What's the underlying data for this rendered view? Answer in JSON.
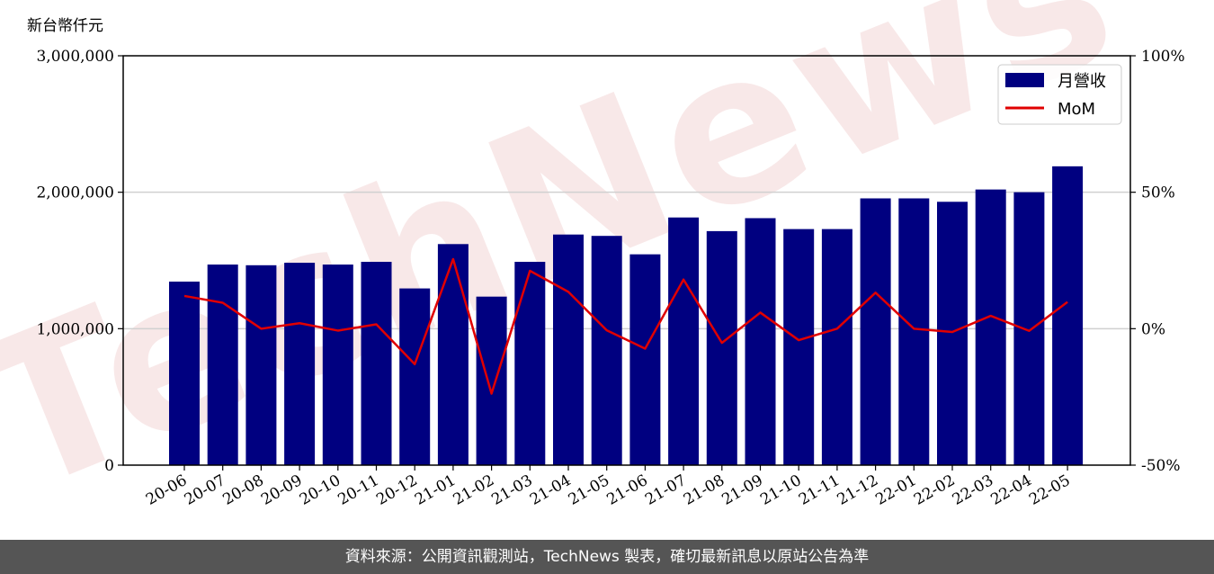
{
  "chart_data": {
    "type": "bar",
    "unit_label": "新台幣仟元",
    "categories": [
      "20-06",
      "20-07",
      "20-08",
      "20-09",
      "20-10",
      "20-11",
      "20-12",
      "21-01",
      "21-02",
      "21-03",
      "21-04",
      "21-05",
      "21-06",
      "21-07",
      "21-08",
      "21-09",
      "21-10",
      "21-11",
      "21-12",
      "22-01",
      "22-02",
      "22-03",
      "22-04",
      "22-05"
    ],
    "series": [
      {
        "name": "月營收",
        "type": "bar",
        "axis": "left",
        "color": "#000080",
        "values": [
          1345000,
          1470000,
          1465000,
          1483000,
          1470000,
          1490000,
          1295000,
          1620000,
          1235000,
          1490000,
          1690000,
          1680000,
          1545000,
          1815000,
          1715000,
          1810000,
          1730000,
          1730000,
          1955000,
          1955000,
          1930000,
          2020000,
          2000000,
          2190000
        ]
      },
      {
        "name": "MoM",
        "type": "line",
        "axis": "right",
        "color": "#e00000",
        "values": [
          12,
          9.5,
          0,
          2,
          -0.7,
          1.6,
          -13,
          25.5,
          -23.8,
          21.2,
          13.5,
          -0.6,
          -7.3,
          18,
          -5.2,
          5.9,
          -4.2,
          0,
          13.2,
          0,
          -1.2,
          4.7,
          -0.8,
          9.8
        ]
      }
    ],
    "ylim": [
      0,
      3000000
    ],
    "yticks": [
      "0",
      "1,000,000",
      "2,000,000",
      "3,000,000"
    ],
    "y2lim": [
      -50,
      100
    ],
    "y2ticks": [
      "-50%",
      "0%",
      "50%",
      "100%"
    ],
    "grid": true,
    "legend": "top-right"
  },
  "watermark": "TechNews",
  "footer": {
    "text": "資料來源：公開資訊觀測站，TechNews 製表，確切最新訊息以原站公告為準"
  }
}
